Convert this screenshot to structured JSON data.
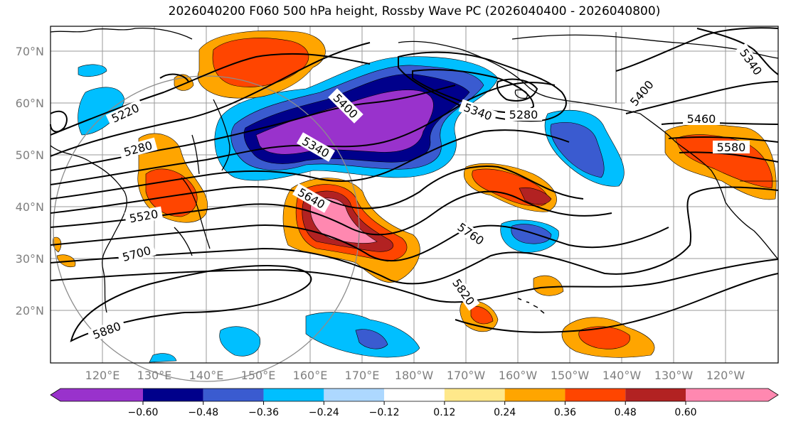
{
  "title": "2026040200 F060 500 hPa height, Rossby Wave PC (2026040400 - 2026040800)",
  "map": {
    "lat_labels": [
      "70°N",
      "60°N",
      "50°N",
      "40°N",
      "30°N",
      "20°N"
    ],
    "lon_labels": [
      "120°E",
      "130°E",
      "140°E",
      "150°E",
      "160°E",
      "170°E",
      "180°W",
      "170°W",
      "160°W",
      "150°W",
      "140°W",
      "130°W",
      "120°W"
    ],
    "lat_range": [
      10,
      75
    ],
    "lon_range": [
      110,
      250
    ],
    "contour_labels": [
      "5220",
      "5280",
      "5400",
      "5340",
      "5640",
      "5520",
      "5700",
      "5880",
      "5760",
      "5820",
      "5340",
      "5280",
      "5400",
      "5460",
      "5580",
      "5340"
    ]
  },
  "colorbar": {
    "ticks": [
      "−0.60",
      "−0.48",
      "−0.36",
      "−0.24",
      "−0.12",
      "0.12",
      "0.24",
      "0.36",
      "0.48",
      "0.60"
    ],
    "colors": [
      "#9932CC",
      "#00008B",
      "#3A5BD0",
      "#00BFFF",
      "#ADD8FF",
      "#FFFFFF",
      "#FFE88A",
      "#FFA500",
      "#FF4500",
      "#B22222",
      "#FF88B0"
    ]
  }
}
